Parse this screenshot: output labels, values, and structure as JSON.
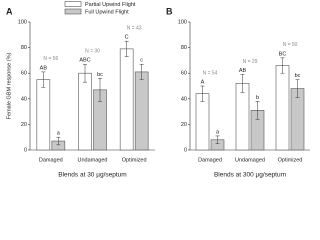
{
  "legend": [
    "Partial Upwind Flight",
    "Full Upwind Flight"
  ],
  "chart_data": [
    {
      "type": "bar",
      "title": "A",
      "y_label": "Female GBM response (%)",
      "x_label": "Blends at 30 µg/septum",
      "categories": [
        "Damaged",
        "Undamaged",
        "Optimized"
      ],
      "n_labels": [
        "N = 56",
        "N = 30",
        "N = 43"
      ],
      "ylim": [
        0,
        100
      ],
      "yticks": [
        0,
        20,
        40,
        60,
        80,
        100
      ],
      "series": [
        {
          "name": "Partial Upwind Flight",
          "color": "#ffffff",
          "values": [
            55,
            60,
            79
          ],
          "errors": [
            6,
            7,
            6
          ],
          "letters": [
            "AB",
            "ABC",
            "C"
          ]
        },
        {
          "name": "Full Upwind Flight",
          "color": "#c8c8c8",
          "values": [
            7,
            47,
            61
          ],
          "errors": [
            3,
            9,
            6
          ],
          "letters": [
            "a",
            "bc",
            "c"
          ]
        }
      ]
    },
    {
      "type": "bar",
      "title": "B",
      "x_label": "Blends at 300 µg/septum",
      "categories": [
        "Damaged",
        "Undamaged",
        "Optimized"
      ],
      "n_labels": [
        "N = 54",
        "N = 29",
        "N = 50"
      ],
      "ylim": [
        0,
        100
      ],
      "yticks": [
        0,
        20,
        40,
        60,
        80,
        100
      ],
      "series": [
        {
          "color": "#ffffff",
          "values": [
            44,
            52,
            66
          ],
          "errors": [
            6,
            7,
            6
          ],
          "letters": [
            "A",
            "AB",
            "BC"
          ]
        },
        {
          "color": "#c8c8c8",
          "values": [
            8,
            31,
            48
          ],
          "errors": [
            3,
            7,
            7
          ],
          "letters": [
            "a",
            "b",
            "bc"
          ]
        }
      ]
    }
  ]
}
